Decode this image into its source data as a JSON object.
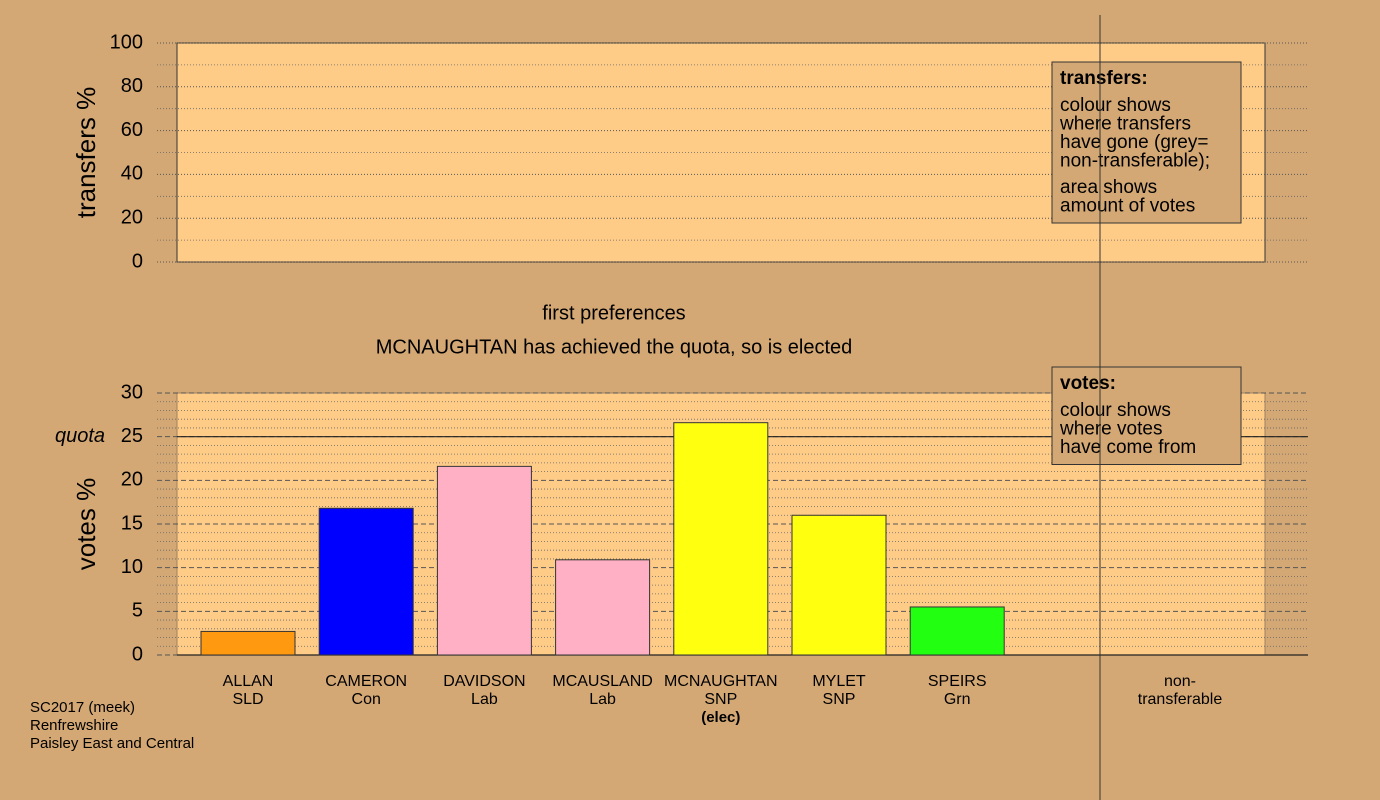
{
  "chart_data": [
    {
      "type": "bar",
      "ylabel": "transfers %",
      "ylim": [
        0,
        100
      ],
      "yticks": [
        0,
        20,
        40,
        60,
        80,
        100
      ],
      "grid": true,
      "legend": {
        "title": "transfers:",
        "lines": [
          [
            "colour shows",
            "where transfers",
            "have gone (grey=",
            "non-transferable);"
          ],
          [
            "area shows",
            "amount of votes"
          ]
        ]
      }
    },
    {
      "type": "bar",
      "ylabel": "votes %",
      "ylim": [
        0,
        30
      ],
      "yticks": [
        0,
        5,
        10,
        15,
        20,
        25,
        30
      ],
      "grid": true,
      "quota": {
        "label": "quota",
        "value": 25
      },
      "categories": [
        [
          "ALLAN",
          "SLD"
        ],
        [
          "CAMERON",
          "Con"
        ],
        [
          "DAVIDSON",
          "Lab"
        ],
        [
          "MCAUSLAND",
          "Lab"
        ],
        [
          "MCNAUGHTAN",
          "SNP",
          "(elec)"
        ],
        [
          "MYLET",
          "SNP"
        ],
        [
          "SPEIRS",
          "Grn"
        ],
        [
          "non-",
          "transferable"
        ]
      ],
      "values": [
        2.7,
        16.8,
        21.6,
        10.9,
        26.6,
        16.0,
        5.5,
        0
      ],
      "colors": [
        "#ff9910",
        "#0000ff",
        "#ffb0c4",
        "#ffb0c4",
        "#ffff10",
        "#ffff10",
        "#22ff10",
        "#999999"
      ],
      "legend": {
        "title": "votes:",
        "lines": [
          [
            "colour shows",
            "where votes",
            "have come from"
          ]
        ]
      }
    }
  ],
  "subtitle": [
    "first preferences",
    "MCNAUGHTAN has achieved the quota, so is elected"
  ],
  "footer": [
    "SC2017 (meek)",
    "Renfrewshire",
    "Paisley East and Central"
  ]
}
